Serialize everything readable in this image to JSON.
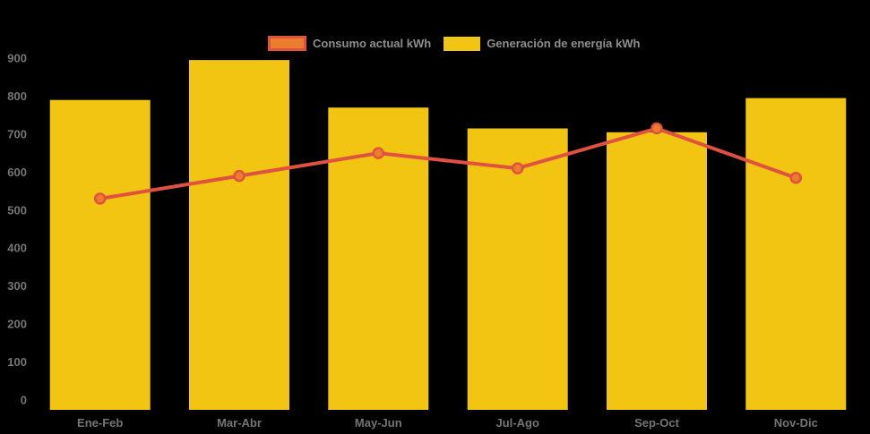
{
  "page": {
    "background": "#000000"
  },
  "chart_data": {
    "type": "combo",
    "title": "",
    "xlabel": "",
    "ylabel": "",
    "categories": [
      "Ene-Feb",
      "Mar-Abr",
      "May-Jun",
      "Jul-Ago",
      "Sep-Oct",
      "Nov-Dic"
    ],
    "series": [
      {
        "name": "Consumo actual kWh",
        "type": "line",
        "color": "#E0513F",
        "marker_fill": "#EC7D2F",
        "values": [
          530,
          590,
          650,
          610,
          715,
          585
        ]
      },
      {
        "name": "Generación de energía kWh",
        "type": "bar",
        "color": "#F1C511",
        "values": [
          790,
          895,
          770,
          715,
          705,
          795
        ]
      }
    ],
    "ylim": [
      0,
      900
    ],
    "ytick_step": 100,
    "yticks": [
      0,
      100,
      200,
      300,
      400,
      500,
      600,
      700,
      800,
      900
    ],
    "grid": false,
    "legend_position": "top",
    "background": "#000000",
    "axis_text_color": "#757575"
  }
}
